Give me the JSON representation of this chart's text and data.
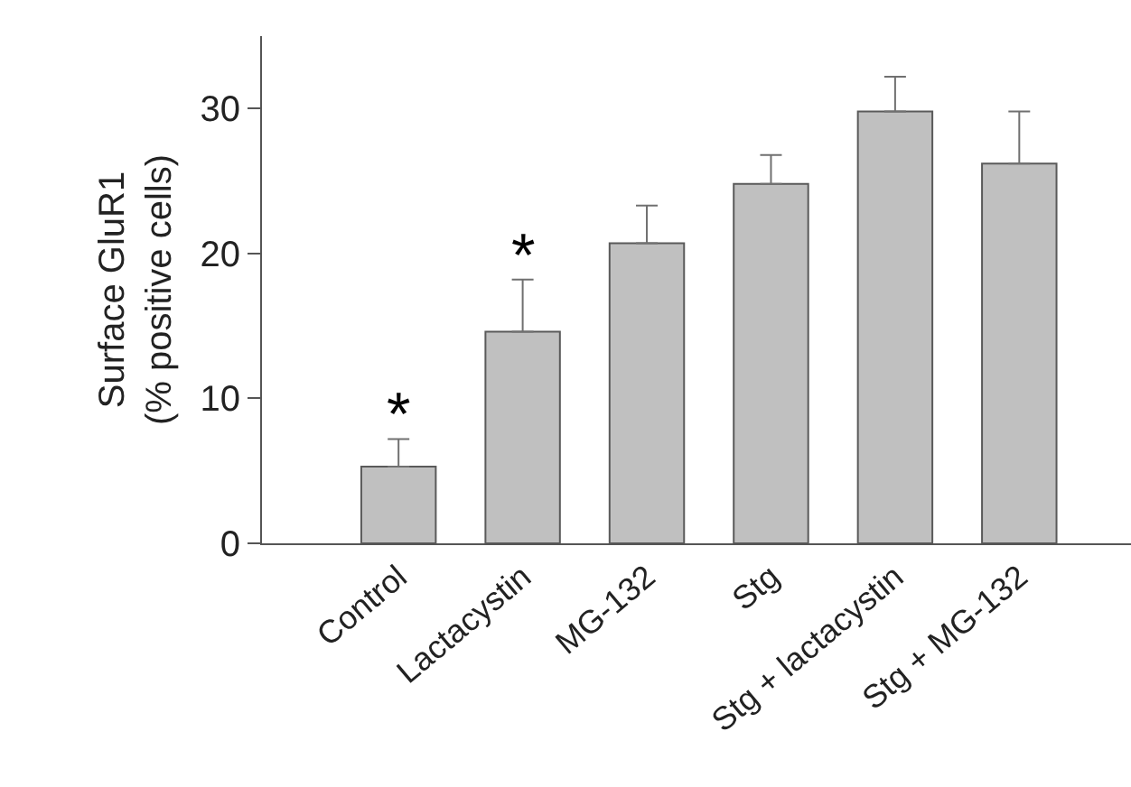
{
  "chart_data": {
    "type": "bar",
    "ylabel": "Surface GluR1\n(% positive cells)",
    "categories": [
      "Control",
      "Lactacystin",
      "MG-132",
      "Stg",
      "Stg + lactacystin",
      "Stg + MG-132"
    ],
    "values": [
      5.3,
      14.6,
      20.7,
      24.8,
      29.8,
      26.2
    ],
    "errors": [
      [
        5.3,
        7.2
      ],
      [
        14.6,
        18.2
      ],
      [
        20.7,
        23.3
      ],
      [
        24.8,
        26.8
      ],
      [
        29.8,
        32.2
      ],
      [
        26.2,
        29.8
      ]
    ],
    "color": "#c0c0c0",
    "ylim": [
      0,
      35
    ],
    "yticks": [
      0,
      10,
      20,
      30
    ],
    "grid": false,
    "annotations": [
      "*",
      "*"
    ]
  }
}
